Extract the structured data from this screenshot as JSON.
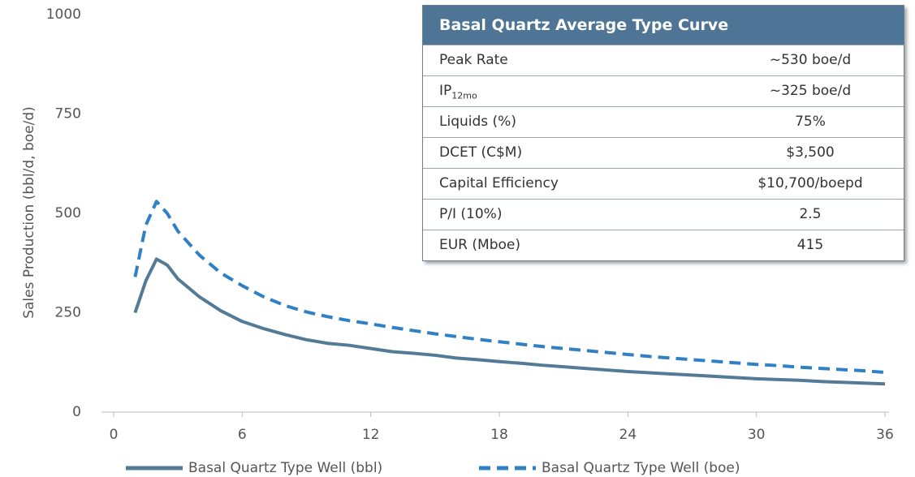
{
  "chart_data": {
    "type": "line",
    "y_label": "Sales Production (bbl/d, boe/d)",
    "x": [
      1,
      1.5,
      2,
      2.5,
      3,
      4,
      5,
      6,
      7,
      8,
      9,
      10,
      11,
      12,
      13,
      14,
      15,
      16,
      17,
      18,
      19,
      20,
      21,
      22,
      23,
      24,
      25,
      26,
      27,
      28,
      29,
      30,
      31,
      32,
      33,
      34,
      35,
      36
    ],
    "series": [
      {
        "name": "Basal Quartz Type Well (bbl)",
        "color": "#537a96",
        "dash": false,
        "values": [
          250,
          330,
          385,
          370,
          335,
          290,
          255,
          228,
          210,
          195,
          182,
          173,
          168,
          160,
          152,
          148,
          143,
          136,
          132,
          127,
          123,
          118,
          114,
          110,
          106,
          102,
          99,
          96,
          93,
          90,
          87,
          84,
          82,
          80,
          77,
          75,
          73,
          71
        ]
      },
      {
        "name": "Basal Quartz Type Well (boe)",
        "color": "#2f80c5",
        "dash": true,
        "values": [
          340,
          470,
          530,
          500,
          455,
          395,
          350,
          318,
          290,
          268,
          252,
          240,
          230,
          222,
          213,
          205,
          197,
          190,
          183,
          177,
          171,
          165,
          160,
          155,
          150,
          145,
          140,
          136,
          132,
          128,
          124,
          120,
          117,
          113,
          110,
          107,
          104,
          100
        ]
      }
    ],
    "xlim": [
      0,
      36
    ],
    "xticks": [
      0,
      6,
      12,
      18,
      24,
      30,
      36
    ],
    "ylim": [
      0,
      1000
    ],
    "yticks": [
      0,
      250,
      500,
      750,
      1000
    ]
  },
  "table": {
    "title": "Basal Quartz Average Type Curve",
    "rows": [
      [
        {
          "text": "Peak Rate"
        },
        "~530 boe/d"
      ],
      [
        {
          "text": "IP",
          "sub": "12mo"
        },
        "~325 boe/d"
      ],
      [
        {
          "text": "Liquids (%)"
        },
        "75%"
      ],
      [
        {
          "text": "DCET (C$M)"
        },
        "$3,500"
      ],
      [
        {
          "text": "Capital Efficiency"
        },
        "$10,700/boepd"
      ],
      [
        {
          "text": "P/I (10%)"
        },
        "2.5"
      ],
      [
        {
          "text": "EUR (Mboe)"
        },
        "415"
      ]
    ]
  }
}
